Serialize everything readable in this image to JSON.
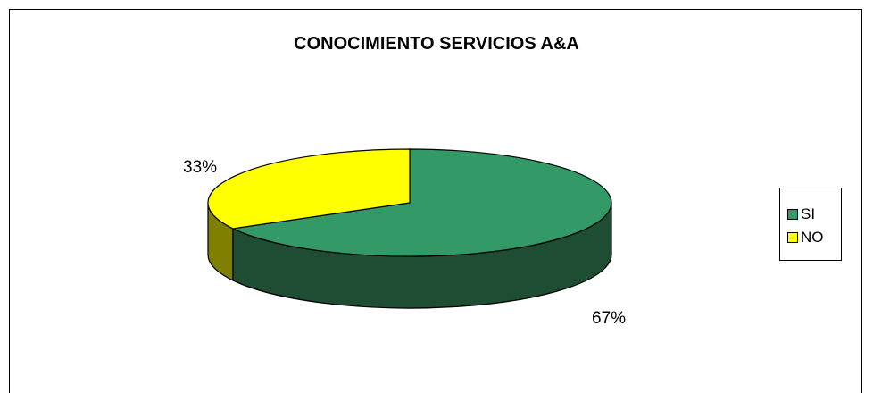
{
  "chart_data": {
    "type": "pie",
    "title": "CONOCIMIENTO SERVICIOS A&A",
    "categories": [
      "SI",
      "NO"
    ],
    "values": [
      67,
      33
    ],
    "labels": [
      "67%",
      "33%"
    ],
    "colors": {
      "SI": {
        "top": "#339966",
        "side": "#1e4d33"
      },
      "NO": {
        "top": "#ffff00",
        "side": "#808000"
      }
    },
    "legend_position": "right"
  }
}
